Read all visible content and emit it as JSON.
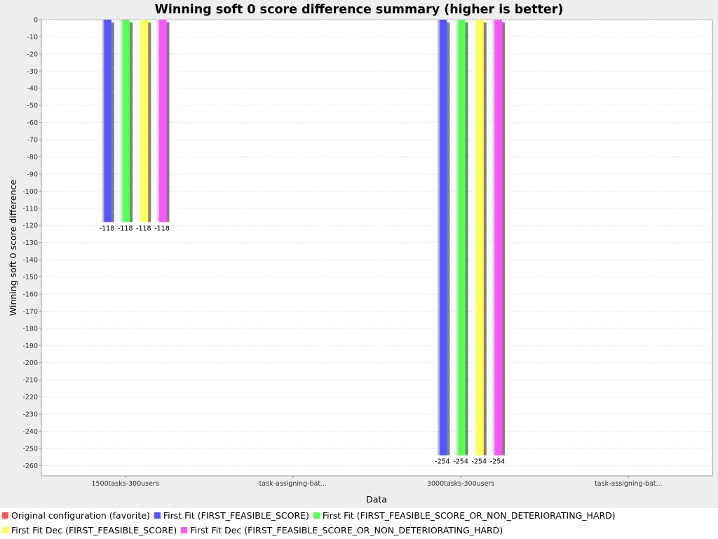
{
  "chart_data": {
    "type": "bar",
    "title": "Winning soft 0 score difference summary (higher is better)",
    "xlabel": "Data",
    "ylabel": "Winning soft 0 score difference",
    "ylim": [
      -266,
      0
    ],
    "yticks": [
      0,
      -10,
      -20,
      -30,
      -40,
      -50,
      -60,
      -70,
      -80,
      -90,
      -100,
      -110,
      -120,
      -130,
      -140,
      -150,
      -160,
      -170,
      -180,
      -190,
      -200,
      -210,
      -220,
      -230,
      -240,
      -250,
      -260
    ],
    "grid": true,
    "legend_position": "bottom",
    "categories": [
      "1500tasks-300users",
      "task-assigning-bat...",
      "3000tasks-300users",
      "task-assigning-bat..."
    ],
    "series": [
      {
        "name": "Original configuration (favorite)",
        "color": "#ff5555",
        "values": [
          0,
          null,
          0,
          null
        ]
      },
      {
        "name": "First Fit (FIRST_FEASIBLE_SCORE)",
        "color": "#5555ff",
        "values": [
          -118,
          null,
          -254,
          null
        ]
      },
      {
        "name": "First Fit (FIRST_FEASIBLE_SCORE_OR_NON_DETERIORATING_HARD)",
        "color": "#55ff55",
        "values": [
          -118,
          null,
          -254,
          null
        ]
      },
      {
        "name": "First Fit Dec (FIRST_FEASIBLE_SCORE)",
        "color": "#ffff55",
        "values": [
          -118,
          null,
          -254,
          null
        ]
      },
      {
        "name": "First Fit Dec (FIRST_FEASIBLE_SCORE_OR_NON_DETERIORATING_HARD)",
        "color": "#ff55ff",
        "values": [
          -118,
          null,
          -254,
          null
        ]
      }
    ]
  }
}
